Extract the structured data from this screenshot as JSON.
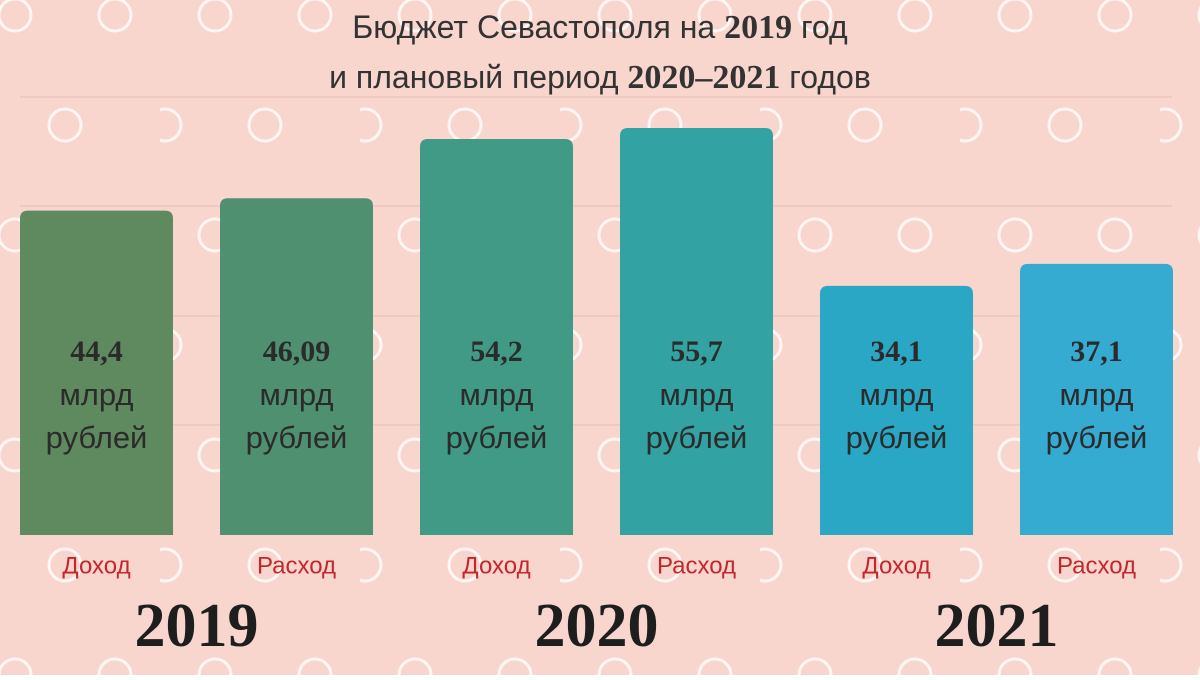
{
  "chart_data": {
    "type": "bar",
    "title_lines": [
      [
        "Бюджет Севастополя на ",
        "2019",
        " год"
      ],
      [
        "и плановый период ",
        "2020–2021",
        " годов"
      ]
    ],
    "categories": [
      "Доход",
      "Расход",
      "Доход",
      "Расход",
      "Доход",
      "Расход"
    ],
    "groups": [
      "2019",
      "2020",
      "2021"
    ],
    "values": [
      44.4,
      46.09,
      54.2,
      55.7,
      34.1,
      37.1
    ],
    "value_labels": [
      "44,4",
      "46,09",
      "54,2",
      "55,7",
      "34,1",
      "37,1"
    ],
    "unit_lines": [
      "млрд",
      "рублей"
    ],
    "colors": [
      "#5f895f",
      "#4f9071",
      "#419a86",
      "#32a2a2",
      "#2aa7c4",
      "#35abd1"
    ]
  }
}
